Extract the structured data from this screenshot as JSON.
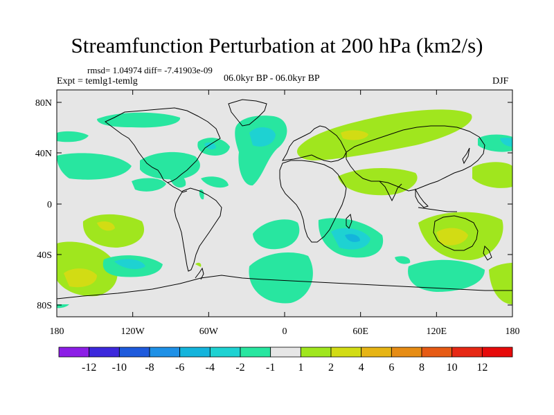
{
  "title": "Streamfunction Perturbation at 200 hPa (km2/s)",
  "stats_line": "rmsd= 1.04974  diff= -7.41903e-09",
  "experiment_line": "Expt = temlg1-temlg",
  "period_line": "06.0kyr BP - 06.0kyr BP",
  "season": "DJF",
  "map": {
    "x_ticks": [
      "180",
      "120W",
      "60W",
      "0",
      "60E",
      "120E",
      "180"
    ],
    "y_ticks": [
      "80N",
      "40N",
      "0",
      "40S",
      "80S"
    ],
    "background_color": "#e6e6e6"
  },
  "colorbar": {
    "labels": [
      "-12",
      "-10",
      "-8",
      "-6",
      "-4",
      "-2",
      "-1",
      "1",
      "2",
      "4",
      "6",
      "8",
      "10",
      "12"
    ],
    "colors": [
      "#8c1ee6",
      "#3c28dc",
      "#1e5adc",
      "#1e90e6",
      "#14b4dc",
      "#1ed2d2",
      "#28e6a0",
      "#e6e6e6",
      "#a0e61e",
      "#d2dc14",
      "#e6b414",
      "#e68c14",
      "#e65a14",
      "#e62814",
      "#e60a0a"
    ]
  }
}
